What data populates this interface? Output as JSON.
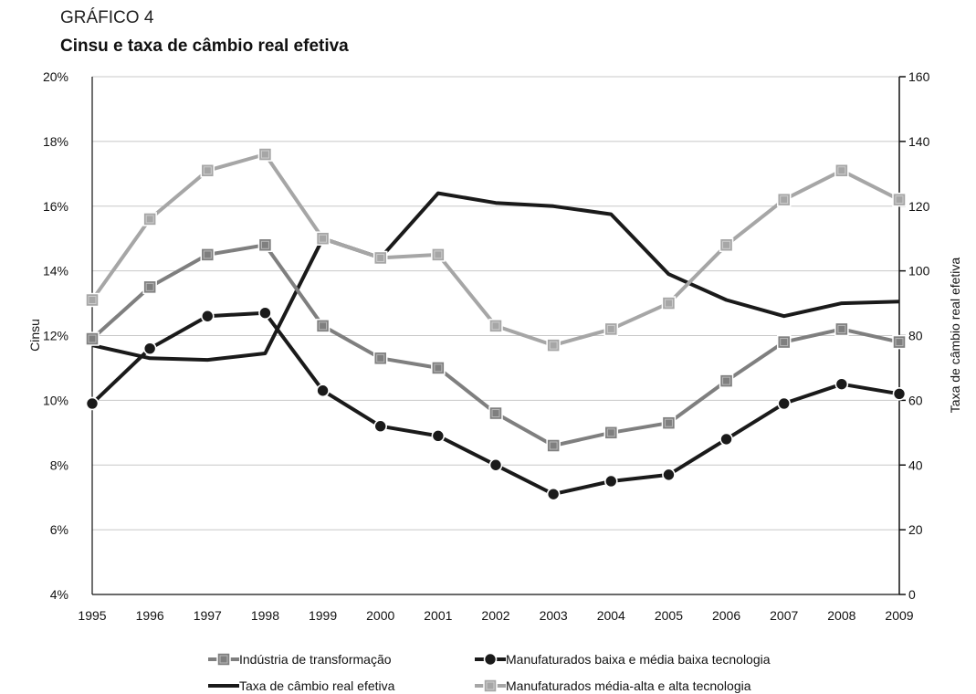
{
  "header": {
    "kicker": "GRÁFICO 4",
    "title": "Cinsu e taxa de câmbio real efetiva"
  },
  "chart_data": {
    "type": "line",
    "x": [
      "1995",
      "1996",
      "1997",
      "1998",
      "1999",
      "2000",
      "2001",
      "2002",
      "2003",
      "2004",
      "2005",
      "2006",
      "2007",
      "2008",
      "2009"
    ],
    "ylabel": "Cinsu",
    "y2label": "Taxa de câmbio real efetiva",
    "ylim": [
      4,
      20
    ],
    "y2lim": [
      0,
      160
    ],
    "yticks": [
      "4%",
      "6%",
      "8%",
      "10%",
      "12%",
      "14%",
      "16%",
      "18%",
      "20%"
    ],
    "y2ticks": [
      "0",
      "20",
      "40",
      "60",
      "80",
      "100",
      "120",
      "140",
      "160"
    ],
    "grid": true,
    "legend_position": "bottom",
    "series": [
      {
        "name": "Indústria de transformação",
        "axis": "left",
        "marker": "square",
        "color": "#7f7f7f",
        "values": [
          11.9,
          13.5,
          14.5,
          14.8,
          12.3,
          11.3,
          11.0,
          9.6,
          8.6,
          9.0,
          9.3,
          10.6,
          11.8,
          12.2,
          11.8
        ]
      },
      {
        "name": "Manufaturados baixa e média baixa tecnologia",
        "axis": "left",
        "marker": "circle",
        "color": "#1a1a1a",
        "values": [
          9.9,
          11.6,
          12.6,
          12.7,
          10.3,
          9.2,
          8.9,
          8.0,
          7.1,
          7.5,
          7.7,
          8.8,
          9.9,
          10.5,
          10.2
        ]
      },
      {
        "name": "Taxa de câmbio real efetiva",
        "axis": "right",
        "marker": "none",
        "color": "#1a1a1a",
        "values": [
          77,
          73,
          72.5,
          74.5,
          110,
          104,
          124,
          121,
          120,
          117.5,
          99,
          91,
          86,
          90,
          90.5
        ]
      },
      {
        "name": "Manufaturados média-alta e alta tecnologia",
        "axis": "left",
        "marker": "square",
        "color": "#a6a6a6",
        "values": [
          13.1,
          15.6,
          17.1,
          17.6,
          15.0,
          14.4,
          14.5,
          12.3,
          11.7,
          12.2,
          13.0,
          14.8,
          16.2,
          17.1,
          16.2
        ]
      }
    ]
  }
}
